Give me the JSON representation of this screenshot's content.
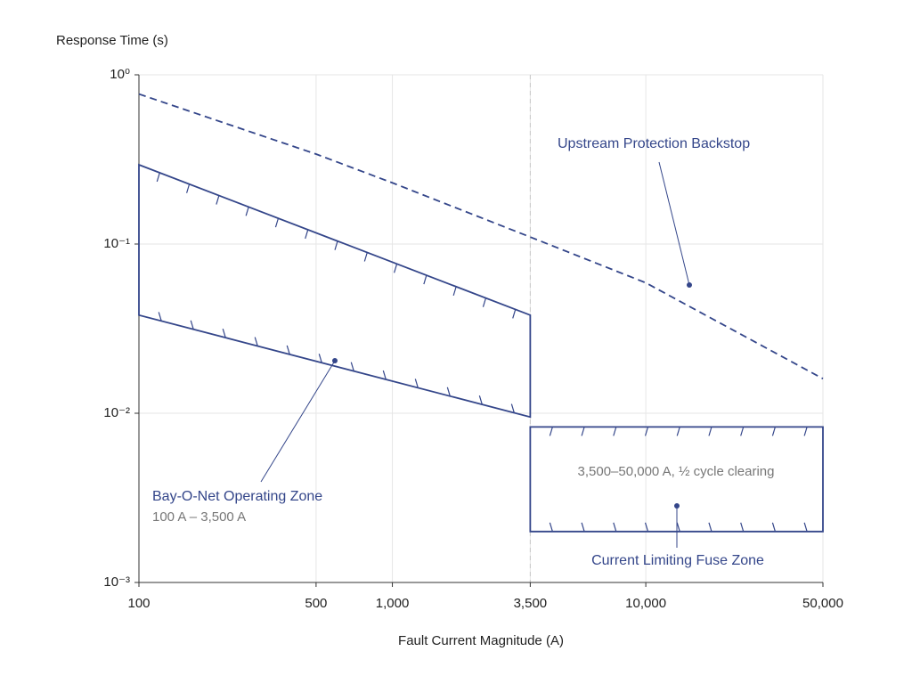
{
  "chart_data": {
    "type": "line",
    "x_label": "Fault Current Magnitude (A)",
    "y_label": "Response Time (s)",
    "xscale": "log",
    "yscale": "log",
    "grid": true,
    "xlim": [
      100,
      50000
    ],
    "ylim": [
      0.001,
      1
    ],
    "xticks": [
      100,
      500,
      {
        "value": 1000,
        "label": "1,000"
      },
      {
        "value": 3500,
        "label": "3,500"
      },
      {
        "value": 10000,
        "label": "10,000"
      },
      {
        "value": 50000,
        "label": "50,000"
      }
    ],
    "yticks": [
      {
        "value": 0.001,
        "label": "10⁻³"
      },
      {
        "value": 0.01,
        "label": "10⁻²"
      },
      {
        "value": 0.1,
        "label": "10⁻¹"
      },
      {
        "value": 1,
        "label": "10⁰"
      }
    ],
    "series": [
      {
        "name": "Upstream Protection Backstop",
        "color": "#34468a",
        "style": "dashed",
        "x": [
          100,
          500,
          1000,
          3500,
          10000,
          50000
        ],
        "values": [
          0.77,
          0.34,
          0.23,
          0.11,
          0.059,
          0.016
        ]
      }
    ],
    "zones": [
      {
        "name": "Bay-O-Net Operating Zone",
        "subtitle": "100 A – 3,500 A",
        "color": "#34468a",
        "x": [
          100,
          3500
        ],
        "upper": [
          0.294,
          0.038
        ],
        "lower": [
          0.038,
          0.0095
        ]
      },
      {
        "name": "Current Limiting Fuse Zone",
        "note": "3,500–50,000 A, ½ cycle clearing",
        "color": "#34468a",
        "x": [
          3500,
          50000
        ],
        "upper": [
          0.0083,
          0.0083
        ],
        "lower": [
          0.002,
          0.002
        ]
      }
    ]
  }
}
